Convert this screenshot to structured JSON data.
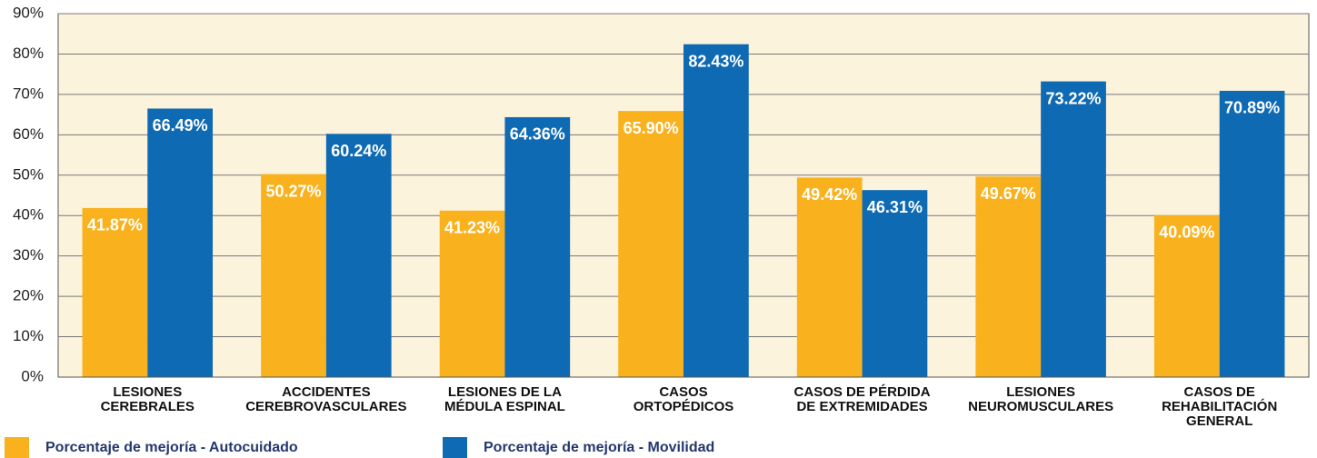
{
  "chart_data": {
    "type": "bar",
    "categories": [
      "LESIONES\nCEREBRALES",
      "ACCIDENTES\nCEREBROVASCULARES",
      "LESIONES DE LA\nMÉDULA ESPINAL",
      "CASOS\nORTOPÉDICOS",
      "CASOS DE PÉRDIDA\nDE EXTREMIDADES",
      "LESIONES\nNEUROMUSCULARES",
      "CASOS DE\nREHABILITACIÓN\nGENERAL"
    ],
    "series": [
      {
        "name": "Porcentaje de mejoría - Autocuidado",
        "color": "#f9b21d",
        "values": [
          41.87,
          50.27,
          41.23,
          65.9,
          49.42,
          49.67,
          40.09
        ],
        "value_labels": [
          "41.87%",
          "50.27%",
          "41.23%",
          "65.90%",
          "49.42%",
          "49.67%",
          "40.09%"
        ]
      },
      {
        "name": "Porcentaje de mejoría - Movilidad",
        "color": "#0f6ab4",
        "values": [
          66.49,
          60.24,
          64.36,
          82.43,
          46.31,
          73.22,
          70.89
        ],
        "value_labels": [
          "66.49%",
          "60.24%",
          "64.36%",
          "82.43%",
          "46.31%",
          "73.22%",
          "70.89%"
        ]
      }
    ],
    "ylim": [
      0,
      90
    ],
    "yticks": [
      {
        "value": 0,
        "label": "0%"
      },
      {
        "value": 10,
        "label": "10%"
      },
      {
        "value": 20,
        "label": "20%"
      },
      {
        "value": 30,
        "label": "30%"
      },
      {
        "value": 40,
        "label": "40%"
      },
      {
        "value": 50,
        "label": "50%"
      },
      {
        "value": 60,
        "label": "60%"
      },
      {
        "value": 70,
        "label": "70%"
      },
      {
        "value": 80,
        "label": "80%"
      },
      {
        "value": 90,
        "label": "90%"
      }
    ],
    "grid": true
  }
}
